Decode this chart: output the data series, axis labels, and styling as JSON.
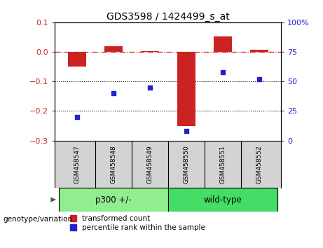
{
  "title": "GDS3598 / 1424499_s_at",
  "categories": [
    "GSM458547",
    "GSM458548",
    "GSM458549",
    "GSM458550",
    "GSM458551",
    "GSM458552"
  ],
  "red_values": [
    -0.05,
    0.02,
    0.002,
    -0.25,
    0.053,
    0.008
  ],
  "blue_values": [
    20,
    40,
    45,
    8,
    58,
    52
  ],
  "red_color": "#cc2222",
  "blue_color": "#2222cc",
  "left_ylim": [
    -0.3,
    0.1
  ],
  "right_ylim": [
    0,
    100
  ],
  "left_yticks": [
    -0.3,
    -0.2,
    -0.1,
    0.0,
    0.1
  ],
  "right_yticks": [
    0,
    25,
    50,
    75,
    100
  ],
  "right_yticklabels": [
    "0",
    "25",
    "50",
    "75",
    "100%"
  ],
  "group1_label": "p300 +/-",
  "group2_label": "wild-type",
  "group1_color": "#90ee90",
  "group2_color": "#44dd66",
  "genotype_label": "genotype/variation",
  "legend_red": "transformed count",
  "legend_blue": "percentile rank within the sample",
  "bar_width": 0.5,
  "dotted_line_values": [
    -0.1,
    -0.2
  ],
  "zero_line_value": 0.0
}
